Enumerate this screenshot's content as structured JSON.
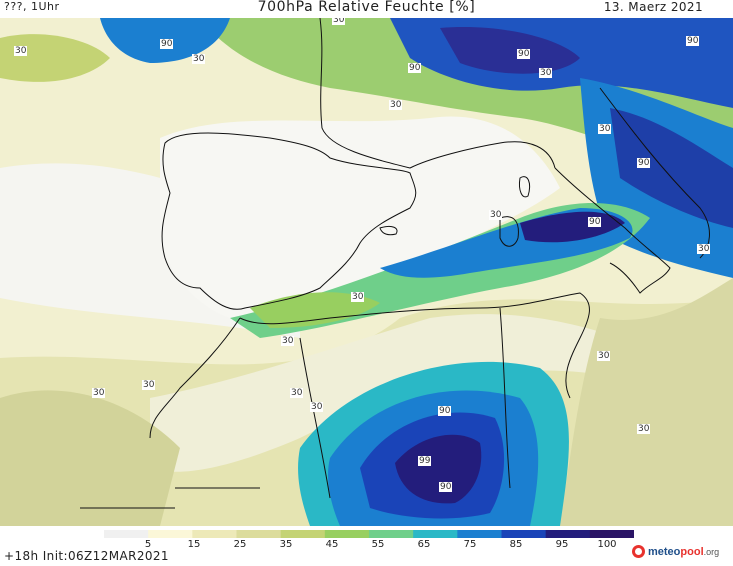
{
  "header": {
    "location": "???, 1Uhr",
    "title": "700hPa Relative Feuchte [%]",
    "date": "13. Maerz 2021"
  },
  "footer": {
    "forecast": "+18h Init:06Z12MAR2021",
    "brand": {
      "name": "meteo",
      "accent": "pool",
      "tld": ".org"
    }
  },
  "legend": {
    "ticks": [
      "5",
      "15",
      "25",
      "35",
      "45",
      "55",
      "65",
      "75",
      "85",
      "95",
      "100"
    ],
    "colors": [
      "#f0f0f0",
      "#fbf7d8",
      "#ede9b8",
      "#dcdc9c",
      "#c4d374",
      "#98cf60",
      "#6fcf8a",
      "#2ab8c6",
      "#1b7fd0",
      "#1a44b8",
      "#231d7c",
      "#2a1466"
    ]
  },
  "contour_labels": [
    {
      "text": "30"
    },
    {
      "text": "30"
    },
    {
      "text": "30"
    },
    {
      "text": "30"
    },
    {
      "text": "30"
    },
    {
      "text": "30"
    },
    {
      "text": "30"
    },
    {
      "text": "30"
    },
    {
      "text": "30"
    },
    {
      "text": "30"
    },
    {
      "text": "30"
    },
    {
      "text": "30"
    },
    {
      "text": "30"
    },
    {
      "text": "30"
    },
    {
      "text": "30"
    },
    {
      "text": "30"
    },
    {
      "text": "90"
    },
    {
      "text": "90"
    },
    {
      "text": "90"
    },
    {
      "text": "90"
    },
    {
      "text": "90"
    },
    {
      "text": "90"
    },
    {
      "text": "90"
    },
    {
      "text": "90"
    },
    {
      "text": "99"
    }
  ]
}
